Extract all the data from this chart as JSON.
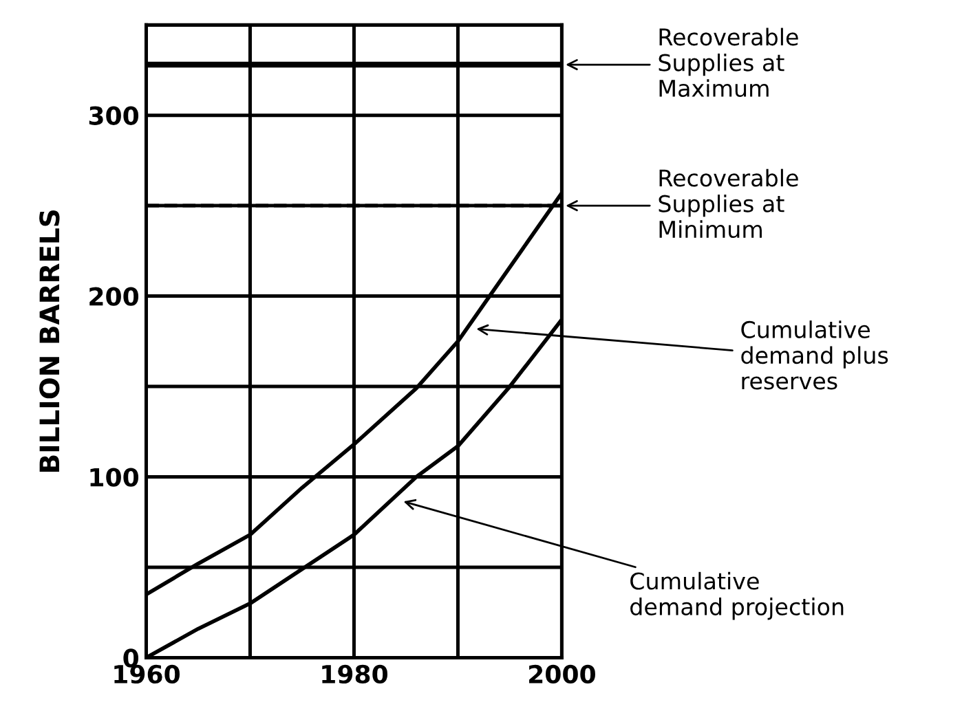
{
  "chart_data": {
    "type": "line",
    "ylabel": "BILLION BARRELS",
    "xlim": [
      1960,
      2000
    ],
    "ylim": [
      0,
      350
    ],
    "xticks": [
      1960,
      {
        "value": 1970,
        "label": null
      },
      1980,
      {
        "value": 1990,
        "label": null
      },
      2000
    ],
    "yticks": [
      0,
      {
        "value": 50,
        "label": null
      },
      100,
      {
        "value": 150,
        "label": null
      },
      200,
      {
        "value": 250,
        "label": null
      },
      300,
      {
        "value": 350,
        "label": null
      }
    ],
    "grid": true,
    "marker": "none",
    "line_style": "solid",
    "series": [
      {
        "color": "#000000",
        "x": [
          1960,
          1965,
          1970,
          1975,
          1980,
          1986,
          1990,
          2000
        ],
        "values": [
          35,
          52,
          68,
          94,
          118,
          149,
          175,
          257
        ]
      },
      {
        "color": "#000000",
        "x": [
          1960,
          1965,
          1970,
          1975,
          1980,
          1986,
          1990,
          1995,
          2000
        ],
        "values": [
          0,
          16,
          30,
          49,
          68,
          100,
          117,
          150,
          187
        ]
      }
    ],
    "ref_lines": [
      {
        "axis": "y",
        "value": 328,
        "label": "Recoverable\nSupplies at\nMaximum",
        "color": "#000000",
        "line_style": "solid"
      },
      {
        "axis": "y",
        "value": 250,
        "label": "Recoverable\nSupplies at\nMinimum",
        "color": "#000000",
        "line_style": "dashed"
      }
    ],
    "annotations": [
      {
        "text": "Cumulative\ndemand plus\nreserves",
        "x": 1991.4,
        "y": 182
      },
      {
        "text": "Cumulative\ndemand projection",
        "x": 1984.4,
        "y": 87
      }
    ]
  }
}
